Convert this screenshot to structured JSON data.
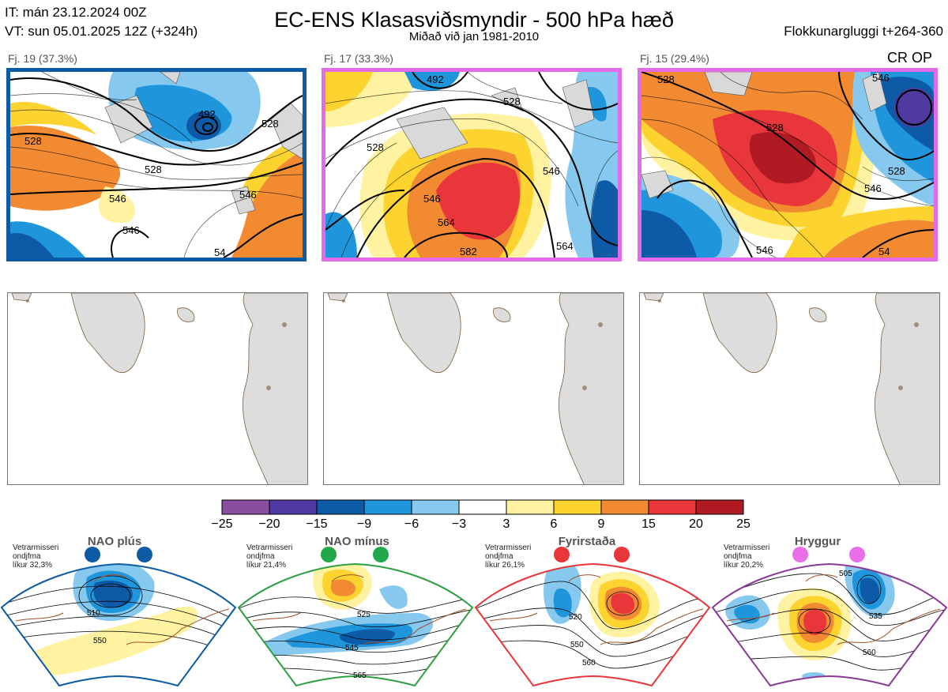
{
  "header": {
    "it_line": "IT: mán 23.12.2024 00Z",
    "vt_line": "VT: sun 05.01.2025 12Z  (+324h)",
    "title": "EC-ENS Klasasviðsmyndir - 500 hPa hæð",
    "subtitle": "Miðað við jan 1981-2010",
    "window": "Flokkunargluggi t+264-360"
  },
  "panels": [
    {
      "label": "Fj. 19 (37.3%)",
      "frame_color": "#0d5aa7",
      "contours": [
        "492",
        "528",
        "528",
        "528",
        "546",
        "546",
        "546",
        "54"
      ]
    },
    {
      "label": "Fj. 17 (33.3%)",
      "frame_color": "#e36be8",
      "contours": [
        "492",
        "528",
        "528",
        "546",
        "546",
        "564",
        "564",
        "582"
      ]
    },
    {
      "label": "Fj. 15 (29.4%)",
      "frame_color": "#e36be8",
      "contours": [
        "528",
        "528",
        "528",
        "546",
        "546",
        "546",
        "54"
      ],
      "tag": "CR OP"
    }
  ],
  "colorbar": {
    "colors": [
      "#8a4e9e",
      "#4e3aa0",
      "#0d5aa7",
      "#1f96dc",
      "#86c8ee",
      "#ffffff",
      "#fff2a0",
      "#fdd330",
      "#f28a32",
      "#e8363a",
      "#b01a22"
    ],
    "ticks": [
      "−25",
      "−20",
      "−15",
      "−9",
      "−6",
      "−3",
      "3",
      "6",
      "9",
      "15",
      "20",
      "25"
    ]
  },
  "regimes": [
    {
      "name": "NAO plús",
      "color": "#0d5aa7",
      "dot_color": "#0d5aa7",
      "note": [
        "Vetrarmisseri",
        "ondjfma",
        "líkur 32,3%"
      ],
      "contours": [
        "510",
        "550"
      ]
    },
    {
      "name": "NAO mínus",
      "color": "#2ea043",
      "dot_color": "#22a84a",
      "note": [
        "Vetrarmisseri",
        "ondjfma",
        "líkur 21,4%"
      ],
      "contours": [
        "525",
        "545",
        "565"
      ]
    },
    {
      "name": "Fyrirstaða",
      "color": "#e8363a",
      "dot_color": "#e8363a",
      "note": [
        "Vetrarmisseri",
        "ondjfma",
        "líkur 26,1%"
      ],
      "contours": [
        "520",
        "550",
        "560"
      ]
    },
    {
      "name": "Hryggur",
      "color": "#8a3a96",
      "dot_color": "#ea6ee8",
      "note": [
        "Vetrarmisseri",
        "ondjfma",
        "líkur 20,2%"
      ],
      "contours": [
        "505",
        "535",
        "560"
      ]
    }
  ]
}
